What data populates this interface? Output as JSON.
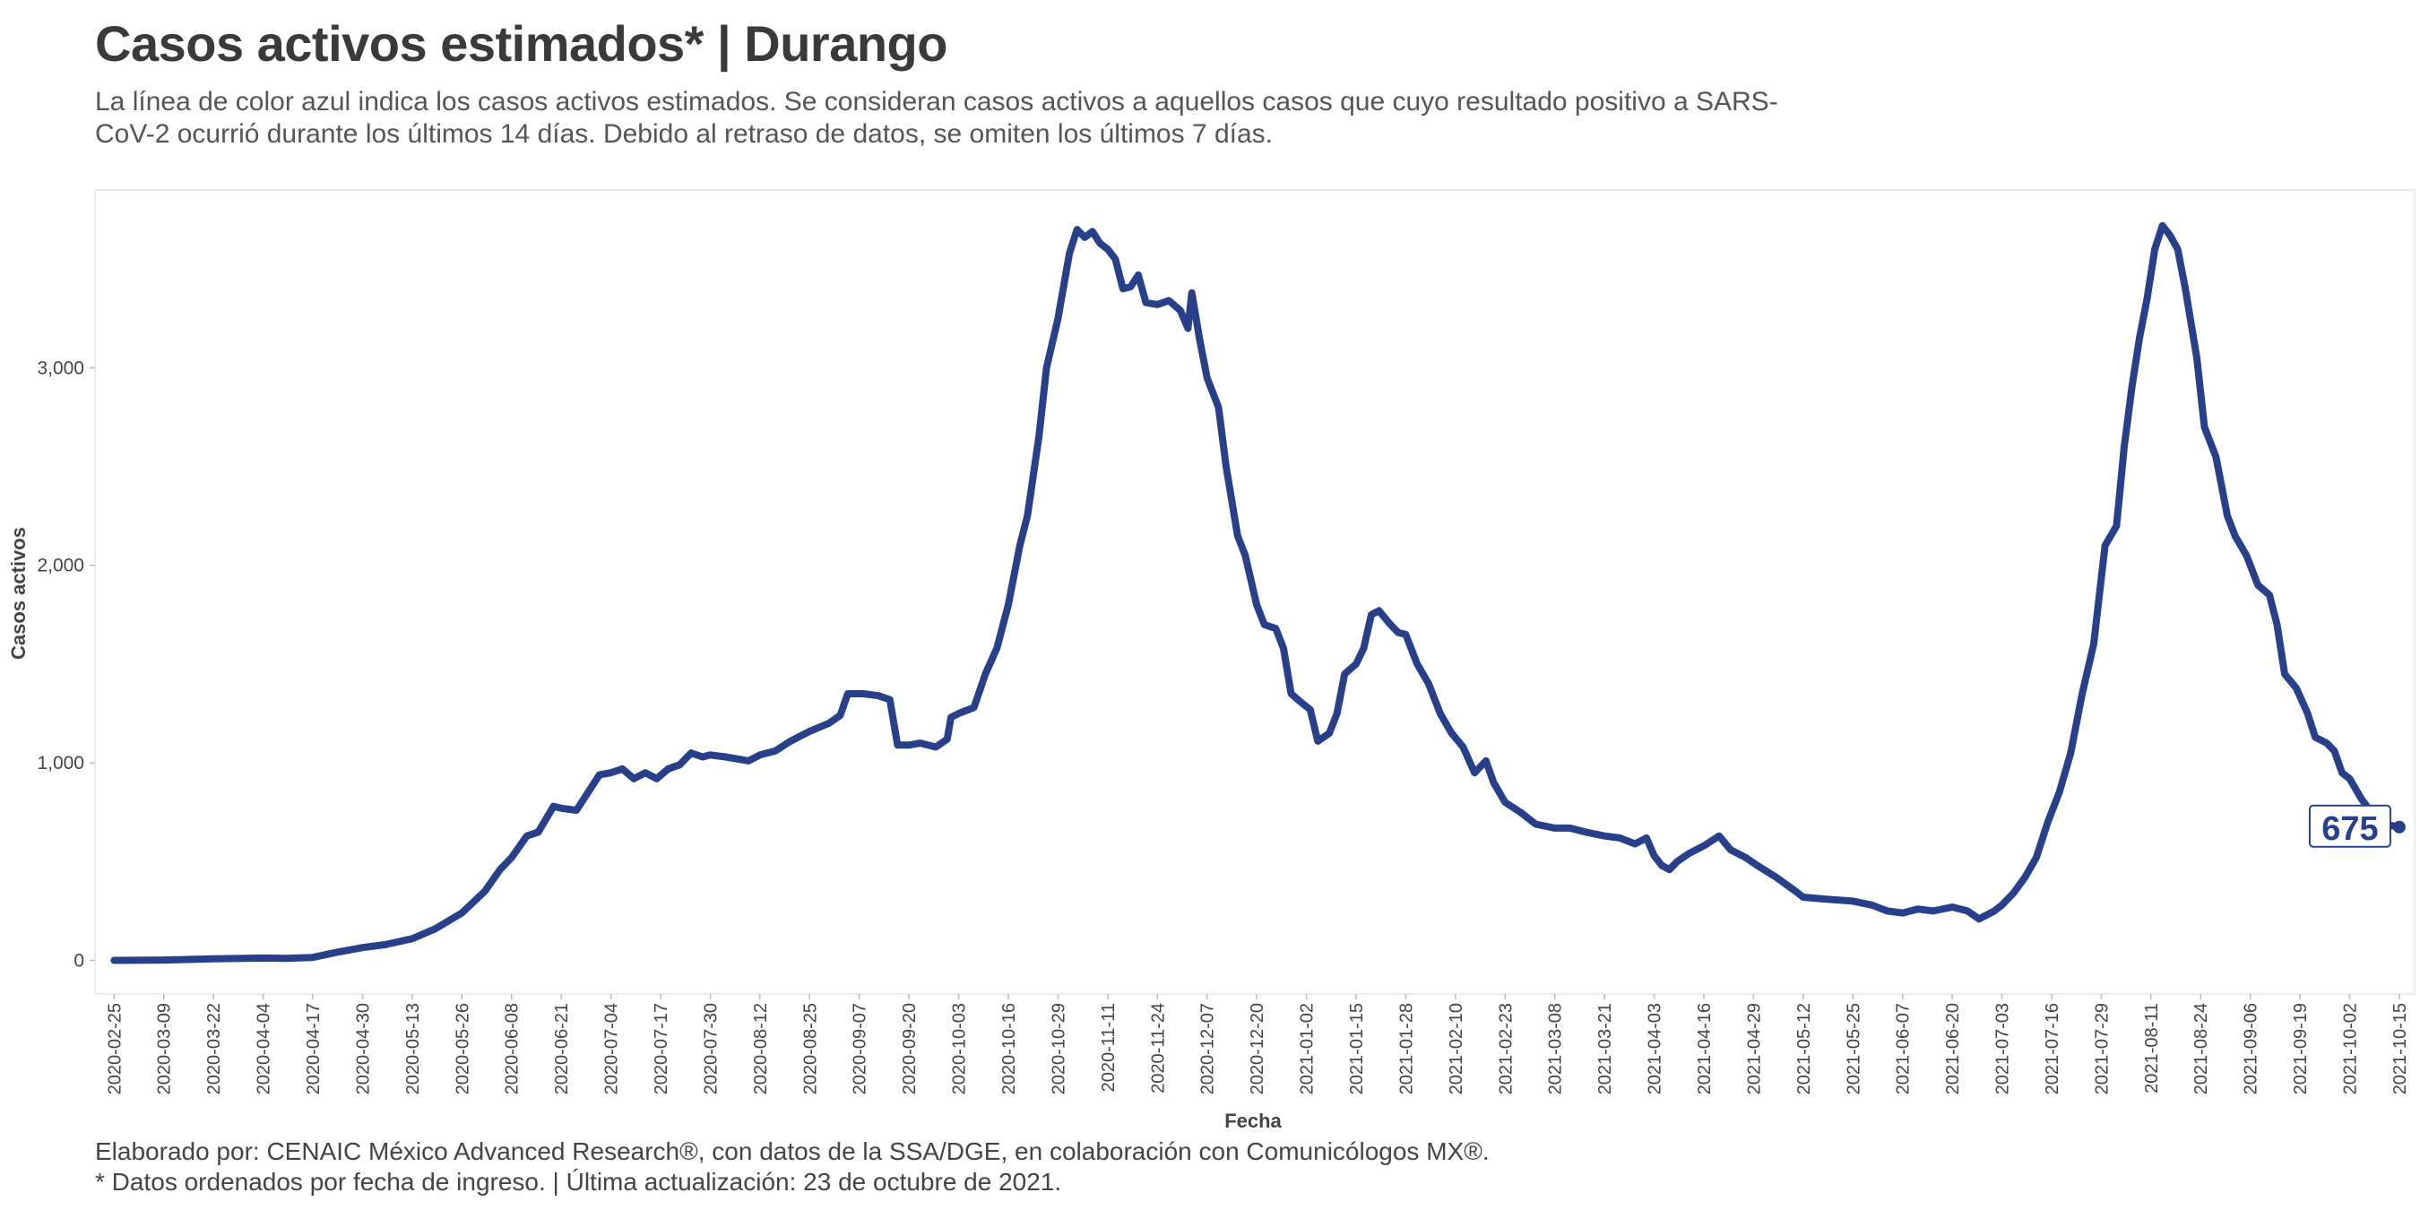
{
  "header": {
    "title": "Casos activos estimados* | Durango",
    "subtitle": "La línea de color azul indica los casos activos estimados. Se consideran casos activos a aquellos casos que cuyo resultado positivo a SARS-CoV-2 ocurrió durante los últimos 14 días. Debido al retraso de datos, se omiten los últimos 7 días."
  },
  "caption": {
    "line1": "Elaborado por: CENAIC México Advanced Research®, con datos de la SSA/DGE, en colaboración con Comunicólogos MX®.",
    "line2": "* Datos ordenados por fecha de ingreso. | Última actualización: 23 de octubre de 2021."
  },
  "colors": {
    "line": "#28408a",
    "axis_text": "#444444",
    "panel_border": "#e6e6e6",
    "background": "#ffffff"
  },
  "chart_data": {
    "type": "line",
    "xlabel": "Fecha",
    "ylabel": "Casos activos",
    "x_type": "date",
    "xlim": [
      "2020-02-20",
      "2021-10-19"
    ],
    "ylim": [
      -170,
      3900
    ],
    "grid": false,
    "y_ticks": [
      0,
      1000,
      2000,
      3000
    ],
    "y_tick_labels": [
      "0",
      "1,000",
      "2,000",
      "3,000"
    ],
    "x_ticks": [
      "2020-02-25",
      "2020-03-09",
      "2020-03-22",
      "2020-04-04",
      "2020-04-17",
      "2020-04-30",
      "2020-05-13",
      "2020-05-26",
      "2020-06-08",
      "2020-06-21",
      "2020-07-04",
      "2020-07-17",
      "2020-07-30",
      "2020-08-12",
      "2020-08-25",
      "2020-09-07",
      "2020-09-20",
      "2020-10-03",
      "2020-10-16",
      "2020-10-29",
      "2020-11-11",
      "2020-11-24",
      "2020-12-07",
      "2020-12-20",
      "2021-01-02",
      "2021-01-15",
      "2021-01-28",
      "2021-02-10",
      "2021-02-23",
      "2021-03-08",
      "2021-03-21",
      "2021-04-03",
      "2021-04-16",
      "2021-04-29",
      "2021-05-12",
      "2021-05-25",
      "2021-06-07",
      "2021-06-20",
      "2021-07-03",
      "2021-07-16",
      "2021-07-29",
      "2021-08-11",
      "2021-08-24",
      "2021-09-06",
      "2021-09-19",
      "2021-10-02",
      "2021-10-15"
    ],
    "last_label": "675",
    "series": [
      {
        "color": "#28408a",
        "points": [
          [
            "2020-02-25",
            0
          ],
          [
            "2020-03-09",
            2
          ],
          [
            "2020-03-22",
            8
          ],
          [
            "2020-04-04",
            12
          ],
          [
            "2020-04-10",
            10
          ],
          [
            "2020-04-17",
            15
          ],
          [
            "2020-04-23",
            40
          ],
          [
            "2020-04-30",
            65
          ],
          [
            "2020-05-06",
            80
          ],
          [
            "2020-05-13",
            110
          ],
          [
            "2020-05-19",
            160
          ],
          [
            "2020-05-26",
            240
          ],
          [
            "2020-06-01",
            350
          ],
          [
            "2020-06-05",
            460
          ],
          [
            "2020-06-08",
            520
          ],
          [
            "2020-06-12",
            630
          ],
          [
            "2020-06-15",
            650
          ],
          [
            "2020-06-19",
            780
          ],
          [
            "2020-06-21",
            770
          ],
          [
            "2020-06-25",
            760
          ],
          [
            "2020-06-28",
            850
          ],
          [
            "2020-07-01",
            940
          ],
          [
            "2020-07-04",
            950
          ],
          [
            "2020-07-07",
            970
          ],
          [
            "2020-07-10",
            920
          ],
          [
            "2020-07-13",
            950
          ],
          [
            "2020-07-16",
            920
          ],
          [
            "2020-07-19",
            970
          ],
          [
            "2020-07-22",
            990
          ],
          [
            "2020-07-25",
            1050
          ],
          [
            "2020-07-28",
            1030
          ],
          [
            "2020-07-30",
            1040
          ],
          [
            "2020-08-03",
            1030
          ],
          [
            "2020-08-06",
            1020
          ],
          [
            "2020-08-09",
            1010
          ],
          [
            "2020-08-12",
            1040
          ],
          [
            "2020-08-16",
            1060
          ],
          [
            "2020-08-20",
            1110
          ],
          [
            "2020-08-25",
            1160
          ],
          [
            "2020-08-30",
            1200
          ],
          [
            "2020-09-02",
            1240
          ],
          [
            "2020-09-04",
            1350
          ],
          [
            "2020-09-08",
            1350
          ],
          [
            "2020-09-12",
            1340
          ],
          [
            "2020-09-15",
            1320
          ],
          [
            "2020-09-17",
            1090
          ],
          [
            "2020-09-20",
            1090
          ],
          [
            "2020-09-23",
            1100
          ],
          [
            "2020-09-27",
            1080
          ],
          [
            "2020-09-30",
            1120
          ],
          [
            "2020-10-01",
            1230
          ],
          [
            "2020-10-03",
            1250
          ],
          [
            "2020-10-07",
            1280
          ],
          [
            "2020-10-10",
            1450
          ],
          [
            "2020-10-13",
            1580
          ],
          [
            "2020-10-16",
            1800
          ],
          [
            "2020-10-19",
            2100
          ],
          [
            "2020-10-21",
            2250
          ],
          [
            "2020-10-24",
            2650
          ],
          [
            "2020-10-26",
            3000
          ],
          [
            "2020-10-29",
            3250
          ],
          [
            "2020-11-01",
            3580
          ],
          [
            "2020-11-03",
            3700
          ],
          [
            "2020-11-05",
            3660
          ],
          [
            "2020-11-07",
            3690
          ],
          [
            "2020-11-09",
            3630
          ],
          [
            "2020-11-11",
            3600
          ],
          [
            "2020-11-13",
            3550
          ],
          [
            "2020-11-15",
            3400
          ],
          [
            "2020-11-17",
            3410
          ],
          [
            "2020-11-19",
            3470
          ],
          [
            "2020-11-21",
            3330
          ],
          [
            "2020-11-24",
            3320
          ],
          [
            "2020-11-27",
            3340
          ],
          [
            "2020-11-30",
            3290
          ],
          [
            "2020-12-02",
            3200
          ],
          [
            "2020-12-03",
            3380
          ],
          [
            "2020-12-05",
            3150
          ],
          [
            "2020-12-07",
            2950
          ],
          [
            "2020-12-10",
            2800
          ],
          [
            "2020-12-12",
            2500
          ],
          [
            "2020-12-15",
            2150
          ],
          [
            "2020-12-17",
            2050
          ],
          [
            "2020-12-20",
            1800
          ],
          [
            "2020-12-22",
            1700
          ],
          [
            "2020-12-25",
            1680
          ],
          [
            "2020-12-27",
            1580
          ],
          [
            "2020-12-29",
            1350
          ],
          [
            "2021-01-01",
            1300
          ],
          [
            "2021-01-03",
            1270
          ],
          [
            "2021-01-05",
            1110
          ],
          [
            "2021-01-08",
            1150
          ],
          [
            "2021-01-10",
            1250
          ],
          [
            "2021-01-12",
            1450
          ],
          [
            "2021-01-15",
            1500
          ],
          [
            "2021-01-17",
            1580
          ],
          [
            "2021-01-19",
            1750
          ],
          [
            "2021-01-21",
            1770
          ],
          [
            "2021-01-24",
            1700
          ],
          [
            "2021-01-26",
            1660
          ],
          [
            "2021-01-28",
            1650
          ],
          [
            "2021-01-31",
            1500
          ],
          [
            "2021-02-03",
            1400
          ],
          [
            "2021-02-06",
            1250
          ],
          [
            "2021-02-09",
            1150
          ],
          [
            "2021-02-12",
            1080
          ],
          [
            "2021-02-15",
            950
          ],
          [
            "2021-02-18",
            1010
          ],
          [
            "2021-02-20",
            900
          ],
          [
            "2021-02-23",
            800
          ],
          [
            "2021-02-27",
            750
          ],
          [
            "2021-03-03",
            690
          ],
          [
            "2021-03-08",
            670
          ],
          [
            "2021-03-12",
            670
          ],
          [
            "2021-03-16",
            650
          ],
          [
            "2021-03-21",
            630
          ],
          [
            "2021-03-25",
            620
          ],
          [
            "2021-03-29",
            590
          ],
          [
            "2021-04-01",
            620
          ],
          [
            "2021-04-03",
            530
          ],
          [
            "2021-04-05",
            480
          ],
          [
            "2021-04-07",
            460
          ],
          [
            "2021-04-09",
            500
          ],
          [
            "2021-04-12",
            540
          ],
          [
            "2021-04-16",
            580
          ],
          [
            "2021-04-20",
            630
          ],
          [
            "2021-04-23",
            560
          ],
          [
            "2021-04-27",
            520
          ],
          [
            "2021-04-30",
            480
          ],
          [
            "2021-05-05",
            420
          ],
          [
            "2021-05-10",
            350
          ],
          [
            "2021-05-12",
            320
          ],
          [
            "2021-05-18",
            310
          ],
          [
            "2021-05-25",
            300
          ],
          [
            "2021-05-30",
            280
          ],
          [
            "2021-06-03",
            250
          ],
          [
            "2021-06-07",
            240
          ],
          [
            "2021-06-11",
            260
          ],
          [
            "2021-06-15",
            250
          ],
          [
            "2021-06-20",
            270
          ],
          [
            "2021-06-24",
            250
          ],
          [
            "2021-06-27",
            210
          ],
          [
            "2021-07-01",
            250
          ],
          [
            "2021-07-03",
            280
          ],
          [
            "2021-07-06",
            340
          ],
          [
            "2021-07-09",
            420
          ],
          [
            "2021-07-12",
            520
          ],
          [
            "2021-07-15",
            700
          ],
          [
            "2021-07-18",
            850
          ],
          [
            "2021-07-21",
            1050
          ],
          [
            "2021-07-24",
            1350
          ],
          [
            "2021-07-27",
            1600
          ],
          [
            "2021-07-30",
            2100
          ],
          [
            "2021-08-02",
            2200
          ],
          [
            "2021-08-04",
            2600
          ],
          [
            "2021-08-06",
            2900
          ],
          [
            "2021-08-08",
            3150
          ],
          [
            "2021-08-10",
            3350
          ],
          [
            "2021-08-12",
            3600
          ],
          [
            "2021-08-14",
            3720
          ],
          [
            "2021-08-16",
            3670
          ],
          [
            "2021-08-18",
            3600
          ],
          [
            "2021-08-20",
            3400
          ],
          [
            "2021-08-23",
            3050
          ],
          [
            "2021-08-25",
            2700
          ],
          [
            "2021-08-28",
            2550
          ],
          [
            "2021-08-31",
            2250
          ],
          [
            "2021-09-02",
            2150
          ],
          [
            "2021-09-05",
            2050
          ],
          [
            "2021-09-08",
            1900
          ],
          [
            "2021-09-11",
            1850
          ],
          [
            "2021-09-13",
            1700
          ],
          [
            "2021-09-15",
            1450
          ],
          [
            "2021-09-18",
            1380
          ],
          [
            "2021-09-21",
            1250
          ],
          [
            "2021-09-23",
            1130
          ],
          [
            "2021-09-26",
            1100
          ],
          [
            "2021-09-28",
            1060
          ],
          [
            "2021-09-30",
            950
          ],
          [
            "2021-10-02",
            920
          ],
          [
            "2021-10-05",
            820
          ],
          [
            "2021-10-08",
            740
          ],
          [
            "2021-10-11",
            690
          ],
          [
            "2021-10-15",
            675
          ]
        ]
      }
    ]
  }
}
